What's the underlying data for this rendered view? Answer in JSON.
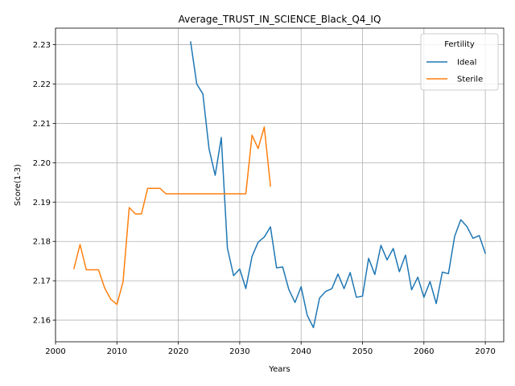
{
  "chart_data": {
    "type": "line",
    "title": "Average_TRUST_IN_SCIENCE_Black_Q4_IQ",
    "xlabel": "Years",
    "ylabel": "Score(1-3)",
    "xlim": [
      2000,
      2073
    ],
    "ylim": [
      2.1545,
      2.2342
    ],
    "xticks": [
      2000,
      2010,
      2020,
      2030,
      2040,
      2050,
      2060,
      2070
    ],
    "yticks": [
      2.16,
      2.17,
      2.18,
      2.19,
      2.2,
      2.21,
      2.22,
      2.23
    ],
    "ytick_labels": [
      "2.16",
      "2.17",
      "2.18",
      "2.19",
      "2.20",
      "2.21",
      "2.22",
      "2.23"
    ],
    "grid": true,
    "legend": {
      "title": "Fertility",
      "placement": "top-right"
    },
    "series": [
      {
        "name": "Ideal",
        "color": "#1f77b4",
        "x": [
          2022,
          2023,
          2024,
          2025,
          2026,
          2027,
          2028,
          2029,
          2030,
          2031,
          2032,
          2033,
          2034,
          2035,
          2036,
          2037,
          2038,
          2039,
          2040,
          2041,
          2042,
          2043,
          2044,
          2045,
          2046,
          2047,
          2048,
          2049,
          2050,
          2051,
          2052,
          2053,
          2054,
          2055,
          2056,
          2057,
          2058,
          2059,
          2060,
          2061,
          2062,
          2063,
          2064,
          2065,
          2066,
          2067,
          2068,
          2069,
          2070
        ],
        "y": [
          2.2307,
          2.22,
          2.2175,
          2.2035,
          2.1968,
          2.2064,
          2.1783,
          2.1713,
          2.173,
          2.168,
          2.1762,
          2.1798,
          2.1811,
          2.1837,
          2.1733,
          2.1735,
          2.1678,
          2.1645,
          2.1685,
          2.1612,
          2.1581,
          2.1656,
          2.1673,
          2.168,
          2.1717,
          2.168,
          2.1721,
          2.1658,
          2.1661,
          2.1757,
          2.1716,
          2.179,
          2.1753,
          2.1782,
          2.1723,
          2.1765,
          2.1677,
          2.1709,
          2.1658,
          2.1698,
          2.1642,
          2.1722,
          2.1718,
          2.1813,
          2.1855,
          2.1838,
          2.1808,
          2.1815,
          2.177
        ]
      },
      {
        "name": "Sterile",
        "color": "#ff7f0e",
        "x": [
          2003,
          2004,
          2005,
          2006,
          2007,
          2008,
          2009,
          2010,
          2011,
          2012,
          2013,
          2014,
          2015,
          2016,
          2017,
          2018,
          2019,
          2020,
          2021,
          2022,
          2023,
          2024,
          2025,
          2026,
          2027,
          2028,
          2029,
          2030,
          2031,
          2032,
          2033,
          2034,
          2035
        ],
        "y": [
          2.1731,
          2.1792,
          2.1728,
          2.1728,
          2.1728,
          2.1682,
          2.1653,
          2.164,
          2.1697,
          2.1886,
          2.187,
          2.187,
          2.1935,
          2.1935,
          2.1935,
          2.1921,
          2.1921,
          2.1921,
          2.1921,
          2.1921,
          2.1921,
          2.1921,
          2.1921,
          2.1921,
          2.1921,
          2.1921,
          2.1921,
          2.1921,
          2.1921,
          2.207,
          2.2036,
          2.2091,
          2.1941
        ]
      }
    ]
  }
}
